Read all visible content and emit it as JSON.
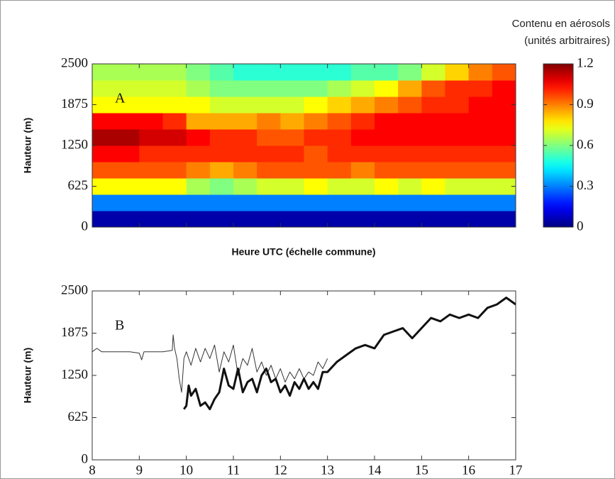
{
  "chart_data": [
    {
      "type": "heatmap",
      "panel_label": "A",
      "ylabel": "Hauteur (m)",
      "xlabel": "Heure UTC (échelle commune)",
      "colorbar_title": [
        "Contenu en aérosols",
        "(unités arbitraires)"
      ],
      "xlim": [
        8,
        17
      ],
      "xticks": [
        8,
        9,
        10,
        11,
        12,
        13,
        14,
        15,
        16,
        17
      ],
      "show_xtick_labels": false,
      "ylim": [
        0,
        2500
      ],
      "yticks": [
        0,
        625,
        1250,
        1875,
        2500
      ],
      "clim": [
        0,
        1.2
      ],
      "cticks": [
        0,
        0.3,
        0.6,
        0.9,
        1.2
      ],
      "colormap": "jet",
      "x": [
        8.25,
        8.75,
        9.25,
        9.75,
        10.25,
        10.75,
        11.25,
        11.75,
        12.25,
        12.75,
        13.25,
        13.75,
        14.25,
        14.75,
        15.25,
        15.75,
        16.25,
        16.75
      ],
      "y": [
        125,
        375,
        625,
        875,
        1125,
        1375,
        1625,
        1875,
        2125,
        2375
      ],
      "z": [
        [
          0.05,
          0.05,
          0.05,
          0.05,
          0.05,
          0.05,
          0.05,
          0.05,
          0.05,
          0.05,
          0.05,
          0.05,
          0.05,
          0.05,
          0.05,
          0.05,
          0.05,
          0.05
        ],
        [
          0.3,
          0.3,
          0.3,
          0.3,
          0.3,
          0.3,
          0.3,
          0.3,
          0.3,
          0.3,
          0.3,
          0.3,
          0.3,
          0.3,
          0.3,
          0.3,
          0.3,
          0.3
        ],
        [
          0.75,
          0.75,
          0.75,
          0.75,
          0.65,
          0.6,
          0.65,
          0.7,
          0.7,
          0.75,
          0.7,
          0.7,
          0.75,
          0.7,
          0.75,
          0.7,
          0.7,
          0.7
        ],
        [
          0.95,
          0.95,
          0.95,
          0.95,
          0.9,
          0.85,
          0.9,
          0.95,
          0.95,
          0.95,
          0.95,
          0.9,
          0.95,
          0.95,
          0.95,
          0.95,
          0.95,
          0.95
        ],
        [
          1.05,
          1.05,
          1.0,
          1.0,
          1.0,
          1.0,
          1.0,
          1.0,
          1.0,
          0.95,
          1.0,
          1.0,
          1.0,
          1.0,
          1.0,
          1.0,
          1.0,
          1.0
        ],
        [
          1.15,
          1.15,
          1.1,
          1.1,
          1.05,
          1.0,
          1.0,
          0.95,
          0.95,
          1.0,
          1.0,
          1.05,
          1.05,
          1.05,
          1.05,
          1.05,
          1.05,
          1.05
        ],
        [
          1.05,
          1.05,
          1.05,
          1.0,
          0.85,
          0.85,
          0.85,
          0.9,
          0.85,
          0.9,
          0.95,
          1.0,
          1.05,
          1.05,
          1.05,
          1.05,
          1.05,
          1.05
        ],
        [
          0.75,
          0.75,
          0.75,
          0.75,
          0.75,
          0.7,
          0.7,
          0.7,
          0.7,
          0.75,
          0.8,
          0.85,
          0.9,
          0.95,
          1.0,
          1.0,
          1.05,
          1.05
        ],
        [
          0.7,
          0.7,
          0.7,
          0.7,
          0.65,
          0.6,
          0.6,
          0.6,
          0.6,
          0.6,
          0.65,
          0.7,
          0.75,
          0.85,
          0.95,
          1.0,
          1.0,
          1.05
        ],
        [
          0.65,
          0.65,
          0.65,
          0.65,
          0.6,
          0.55,
          0.5,
          0.5,
          0.5,
          0.5,
          0.5,
          0.55,
          0.55,
          0.6,
          0.7,
          0.8,
          0.9,
          0.95
        ]
      ]
    },
    {
      "type": "line",
      "panel_label": "B",
      "ylabel": "Hauteur (m)",
      "xlim": [
        8,
        17
      ],
      "xticks": [
        8,
        9,
        10,
        11,
        12,
        13,
        14,
        15,
        16,
        17
      ],
      "show_xtick_labels": true,
      "ylim": [
        0,
        2500
      ],
      "yticks": [
        0,
        625,
        1250,
        1875,
        2500
      ],
      "series": [
        {
          "color": "#333333",
          "width": 1,
          "x": [
            8,
            8.1,
            8.2,
            8.5,
            8.8,
            9,
            9.05,
            9.1,
            9.5,
            9.7,
            9.72,
            9.75,
            9.8,
            9.85,
            9.9,
            9.95,
            10.0,
            10.1,
            10.2,
            10.3,
            10.4,
            10.5,
            10.6,
            10.7,
            10.8,
            10.9,
            11.0,
            11.1,
            11.2,
            11.3,
            11.4,
            11.5,
            11.6,
            11.7,
            11.8,
            11.9,
            12.0,
            12.1,
            12.2,
            12.3,
            12.4,
            12.5,
            12.6,
            12.7,
            12.8,
            12.9,
            13.0
          ],
          "values": [
            1600,
            1650,
            1600,
            1600,
            1600,
            1580,
            1480,
            1600,
            1600,
            1620,
            1850,
            1650,
            1500,
            1200,
            1000,
            1500,
            1600,
            1400,
            1650,
            1450,
            1650,
            1500,
            1700,
            1300,
            1600,
            1450,
            1700,
            1250,
            1500,
            1400,
            1650,
            1300,
            1450,
            1250,
            1400,
            1200,
            1350,
            1150,
            1300,
            1200,
            1350,
            1200,
            1300,
            1250,
            1450,
            1350,
            1500
          ]
        },
        {
          "color": "#111111",
          "width": 3,
          "x": [
            9.95,
            10.0,
            10.05,
            10.1,
            10.2,
            10.3,
            10.4,
            10.5,
            10.6,
            10.7,
            10.8,
            10.9,
            11.0,
            11.1,
            11.2,
            11.3,
            11.4,
            11.5,
            11.6,
            11.7,
            11.8,
            11.9,
            12.0,
            12.1,
            12.2,
            12.3,
            12.4,
            12.5,
            12.6,
            12.7,
            12.8,
            12.9,
            13.0,
            13.2,
            13.4,
            13.6,
            13.8,
            14.0,
            14.1,
            14.2,
            14.4,
            14.6,
            14.8,
            15.0,
            15.2,
            15.4,
            15.6,
            15.8,
            16.0,
            16.2,
            16.4,
            16.6,
            16.8,
            17.0
          ],
          "values": [
            750,
            800,
            1100,
            950,
            1050,
            800,
            850,
            750,
            900,
            1000,
            1350,
            1100,
            1050,
            1350,
            1000,
            1150,
            1200,
            1000,
            1250,
            1350,
            1150,
            1200,
            1000,
            1100,
            950,
            1150,
            1050,
            1200,
            1050,
            1150,
            1050,
            1300,
            1300,
            1450,
            1550,
            1650,
            1700,
            1650,
            1750,
            1850,
            1900,
            1950,
            1800,
            1950,
            2100,
            2050,
            2150,
            2100,
            2150,
            2100,
            2250,
            2300,
            2400,
            2300
          ]
        }
      ]
    }
  ]
}
